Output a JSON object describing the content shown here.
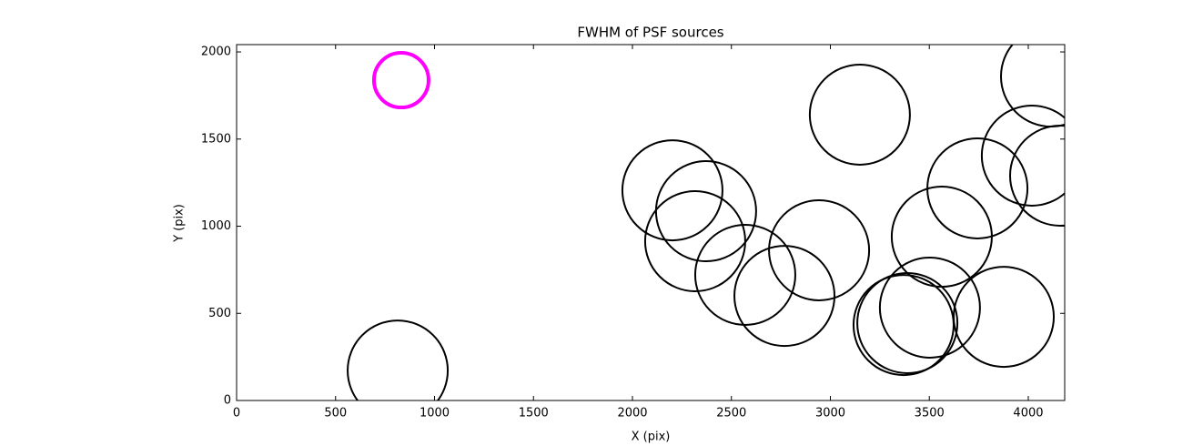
{
  "chart_data": {
    "type": "scatter",
    "title": "FWHM of PSF sources",
    "x_label": "X (pix)",
    "y_label": "Y (pix)",
    "xlim": [
      0,
      4184
    ],
    "ylim": [
      0,
      2042
    ],
    "xticks": [
      0,
      500,
      1000,
      1500,
      2000,
      2500,
      3000,
      3500,
      4000
    ],
    "yticks": [
      0,
      500,
      1000,
      1500,
      2000
    ],
    "series": [
      {
        "color": "#ff00ff",
        "x": [
          832
        ],
        "values": [
          1838
        ],
        "sizes": [
          30
        ]
      },
      {
        "color": "#000000",
        "x": [
          814,
          3149,
          4115,
          4018,
          4161,
          3743,
          3563,
          3876,
          3503,
          3389,
          3370,
          2943,
          2768,
          2570,
          2317,
          2372,
          2202
        ],
        "values": [
          172,
          1640,
          1859,
          1405,
          1290,
          1217,
          940,
          480,
          533,
          444,
          433,
          862,
          600,
          721,
          914,
          1086,
          1206
        ],
        "sizes": [
          55,
          55,
          55,
          55,
          55,
          55,
          55,
          55,
          55,
          55,
          55,
          55,
          55,
          55,
          55,
          55,
          55
        ]
      }
    ]
  }
}
